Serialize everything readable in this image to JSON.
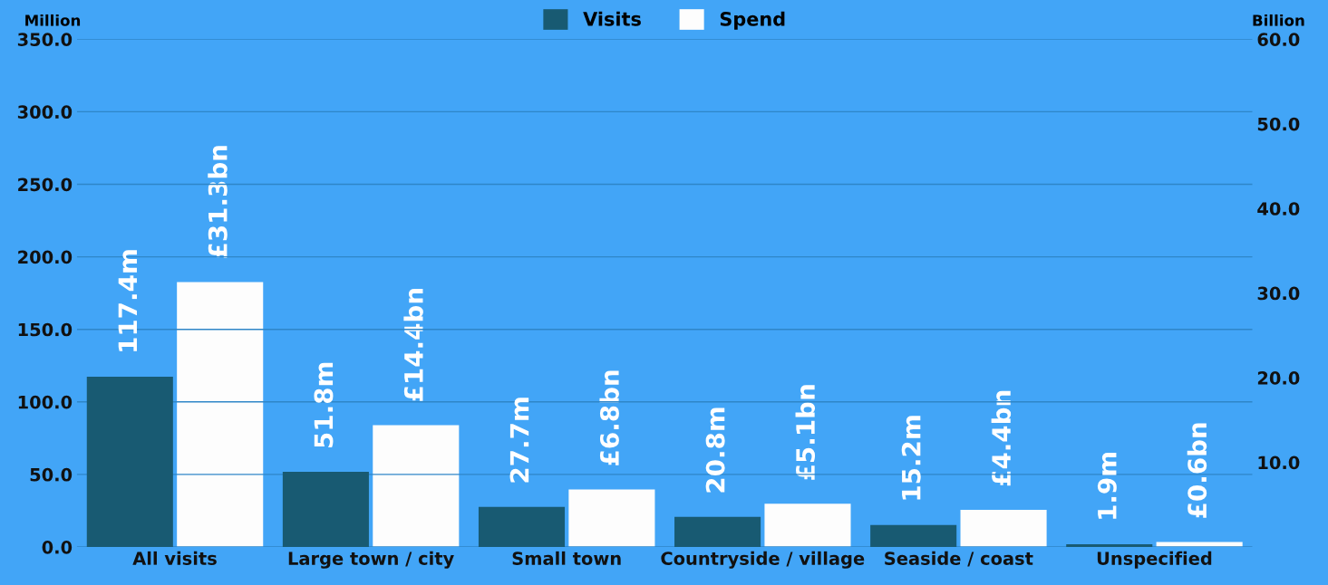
{
  "chart_data": {
    "type": "bar",
    "ylabel": "Million",
    "y2label": "Billion",
    "categories": [
      "All visits",
      "Large town / city",
      "Small town",
      "Countryside / village",
      "Seaside / coast",
      "Unspecified"
    ],
    "series": [
      {
        "name": "Visits",
        "color": "#185a72",
        "values": [
          117.4,
          51.8,
          27.7,
          20.8,
          15.2,
          1.9
        ],
        "value_labels": [
          "117.4m",
          "51.8m",
          "27.7m",
          "20.8m",
          "15.2m",
          "1.9m"
        ]
      },
      {
        "name": "Spend",
        "color": "#fdfdfd",
        "axis": "y2",
        "values": [
          31.3,
          14.4,
          6.8,
          5.1,
          4.4,
          0.6
        ],
        "value_labels": [
          "£31.3bn",
          "£14.4bn",
          "£6.8bn",
          "£5.1bn",
          "£4.4bn",
          "£0.6bn"
        ]
      }
    ],
    "ylim": [
      0,
      350
    ],
    "yticks": [
      {
        "value": 0,
        "label": "0.0"
      },
      {
        "value": 50,
        "label": "50.0"
      },
      {
        "value": 100,
        "label": "100.0"
      },
      {
        "value": 150,
        "label": "150.0"
      },
      {
        "value": 200,
        "label": "200.0"
      },
      {
        "value": 250,
        "label": "250.0"
      },
      {
        "value": 300,
        "label": "300.0"
      },
      {
        "value": 350,
        "label": "350.0"
      }
    ],
    "y2lim": [
      0,
      60
    ],
    "y2ticks": [
      {
        "value": 10,
        "label": "10.0"
      },
      {
        "value": 20,
        "label": "20.0"
      },
      {
        "value": 30,
        "label": "30.0"
      },
      {
        "value": 40,
        "label": "40.0"
      },
      {
        "value": 50,
        "label": "50.0"
      },
      {
        "value": 60,
        "label": "60.0"
      }
    ],
    "grid": "y",
    "legend": "top"
  }
}
